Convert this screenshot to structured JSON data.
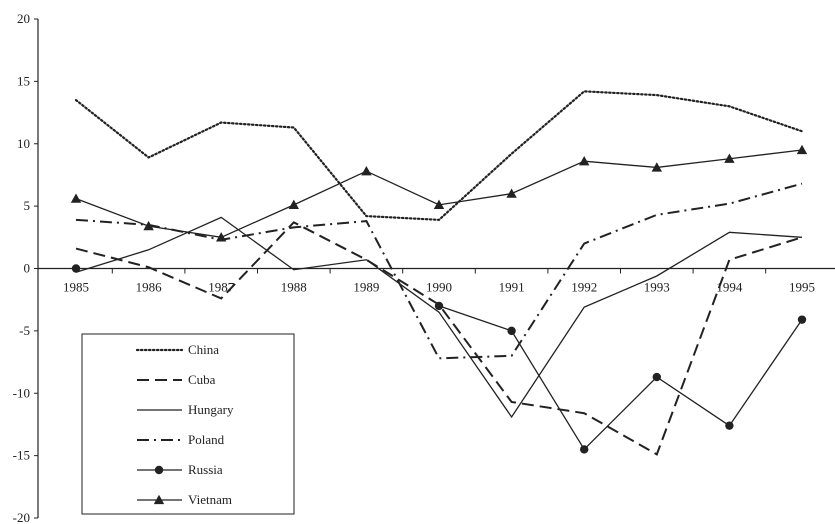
{
  "chart_data": {
    "type": "line",
    "title": "",
    "xlabel": "",
    "ylabel": "",
    "x": [
      "1985",
      "1986",
      "1987",
      "1988",
      "1989",
      "1990",
      "1991",
      "1992",
      "1993",
      "1994",
      "1995"
    ],
    "ylim": [
      -20,
      20
    ],
    "yticks": [
      20,
      15,
      10,
      5,
      0,
      -5,
      -10,
      -15,
      -20
    ],
    "grid": false,
    "legend": "bottom-left",
    "series": [
      {
        "name": "China",
        "style": "dotted",
        "marker": "none",
        "color": "#222222",
        "values": [
          13.5,
          8.9,
          11.7,
          11.3,
          4.2,
          3.9,
          9.2,
          14.2,
          13.9,
          13.0,
          11.0
        ]
      },
      {
        "name": "Cuba",
        "style": "dashed",
        "marker": "none",
        "color": "#222222",
        "values": [
          1.6,
          0.1,
          -2.4,
          3.7,
          0.7,
          -2.9,
          -10.7,
          -11.6,
          -14.9,
          0.7,
          2.5
        ]
      },
      {
        "name": "Hungary",
        "style": "solid",
        "marker": "none",
        "color": "#222222",
        "values": [
          -0.3,
          1.5,
          4.1,
          -0.1,
          0.7,
          -3.5,
          -11.9,
          -3.1,
          -0.6,
          2.9,
          2.5
        ]
      },
      {
        "name": "Poland",
        "style": "dashdot",
        "marker": "none",
        "color": "#222222",
        "values": [
          3.9,
          3.5,
          2.3,
          3.3,
          3.8,
          -7.2,
          -7.0,
          2.0,
          4.3,
          5.2,
          6.8
        ]
      },
      {
        "name": "Russia",
        "style": "solid",
        "marker": "circle",
        "color": "#222222",
        "values": [
          0.0,
          null,
          null,
          null,
          null,
          -3.0,
          -5.0,
          -14.5,
          -8.7,
          -12.6,
          -4.1
        ]
      },
      {
        "name": "Vietnam",
        "style": "solid",
        "marker": "triangle",
        "color": "#222222",
        "values": [
          5.6,
          3.4,
          2.5,
          5.1,
          7.8,
          5.1,
          6.0,
          8.6,
          8.1,
          8.8,
          9.5
        ]
      }
    ]
  }
}
